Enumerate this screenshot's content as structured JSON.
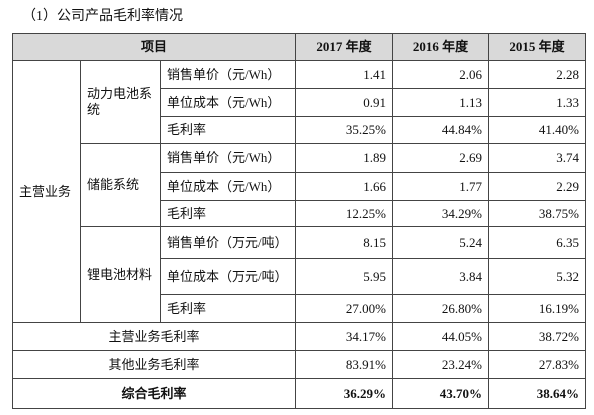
{
  "title": "（1）公司产品毛利率情况",
  "table": {
    "header": [
      "项目",
      "2017 年度",
      "2016 年度",
      "2015 年度"
    ],
    "segment": "主营业务",
    "groups": [
      {
        "name": "动力电池系统",
        "rows": [
          [
            "销售单价（元/Wh）",
            "1.41",
            "2.06",
            "2.28"
          ],
          [
            "单位成本（元/Wh）",
            "0.91",
            "1.13",
            "1.33"
          ],
          [
            "毛利率",
            "35.25%",
            "44.84%",
            "41.40%"
          ]
        ]
      },
      {
        "name": "储能系统",
        "rows": [
          [
            "销售单价（元/Wh）",
            "1.89",
            "2.69",
            "3.74"
          ],
          [
            "单位成本（元/Wh）",
            "1.66",
            "1.77",
            "2.29"
          ],
          [
            "毛利率",
            "12.25%",
            "34.29%",
            "38.75%"
          ]
        ]
      },
      {
        "name": "锂电池材料",
        "rows": [
          [
            "销售单价（万元/吨）",
            "8.15",
            "5.24",
            "6.35"
          ],
          [
            "单位成本（万元/吨）",
            "5.95",
            "3.84",
            "5.32"
          ],
          [
            "毛利率",
            "27.00%",
            "26.80%",
            "16.19%"
          ]
        ]
      }
    ],
    "summary": [
      [
        "主营业务毛利率",
        "34.17%",
        "44.05%",
        "38.72%"
      ],
      [
        "其他业务毛利率",
        "83.91%",
        "23.24%",
        "27.83%"
      ],
      [
        "综合毛利率",
        "36.29%",
        "43.70%",
        "38.64%"
      ]
    ]
  }
}
